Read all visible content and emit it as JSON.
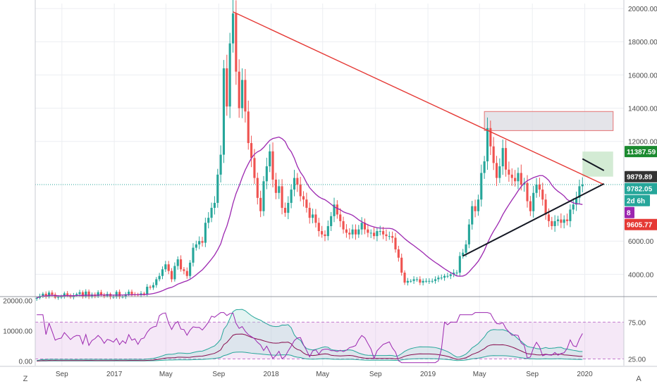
{
  "colors": {
    "bull": "#26a69a",
    "bear": "#ef5350",
    "ma": "#9c27b0",
    "trend_red": "#e53935",
    "trend_black": "#131722",
    "grid": "#eceef2",
    "axis_text": "#4a4a4a",
    "price_line": "#26a69a",
    "rsi": "#9c27b0",
    "bb_upper": "#26a69a",
    "bb_lower": "#26a69a",
    "bb_mid": "#880e4f",
    "osc_fill": "#e1bee7"
  },
  "bottom_bar": {
    "left_icon": "Z",
    "right_icon": "A"
  },
  "chart_data": [
    {
      "type": "candlestick",
      "title": "",
      "x": {
        "start": "2016-07",
        "end": "2020-04",
        "tick_labels": [
          "Sep",
          "2017",
          "May",
          "Sep",
          "2018",
          "May",
          "Sep",
          "2019",
          "May",
          "Sep",
          "2020"
        ]
      },
      "y": {
        "min": 2700,
        "max": 20300,
        "tick_labels": [
          "20000.00",
          "18000.00",
          "16000.00",
          "14000.00",
          "12000.00",
          "6000.00",
          "4000.00"
        ]
      },
      "weekly_close": [
        2580,
        2700,
        2830,
        2650,
        2900,
        2780,
        2590,
        2630,
        2650,
        2850,
        2750,
        2620,
        2740,
        2810,
        2920,
        2660,
        2960,
        2640,
        2780,
        2690,
        2920,
        2780,
        2690,
        2820,
        2630,
        2650,
        2940,
        2640,
        2650,
        2800,
        2950,
        2800,
        2780,
        2750,
        2850,
        2800,
        3250,
        3200,
        3350,
        3700,
        3900,
        4300,
        4600,
        4200,
        3700,
        4500,
        4900,
        4300,
        4200,
        3900,
        4700,
        5600,
        5800,
        6000,
        5900,
        7100,
        7400,
        8000,
        8300,
        10000,
        11200,
        16400,
        14100,
        17900,
        19700,
        16200,
        14000,
        15700,
        13800,
        11900,
        11000,
        9800,
        8600,
        7800,
        9600,
        10500,
        11400,
        9700,
        8900,
        9300,
        8000,
        7700,
        8300,
        9100,
        9800,
        9400,
        8700,
        8500,
        8000,
        7400,
        7600,
        7100,
        6600,
        6400,
        6300,
        6900,
        7500,
        8200,
        7600,
        7200,
        6700,
        6500,
        6400,
        6700,
        6400,
        6700,
        7100,
        6700,
        6500,
        6500,
        6300,
        6600,
        6600,
        6400,
        6300,
        6300,
        6200,
        5500,
        5000,
        4100,
        3500,
        3600,
        3600,
        3700,
        3700,
        3500,
        3600,
        3600,
        3600,
        3600,
        3700,
        3800,
        3800,
        3900,
        3900,
        4000,
        4100,
        4100,
        5100,
        5300,
        5800,
        7000,
        8100,
        7800,
        8500,
        10100,
        10800,
        12800,
        11700,
        10700,
        9800,
        10500,
        11600,
        10300,
        10000,
        9800,
        9600,
        10100,
        9400,
        9500,
        8400,
        7800,
        8900,
        9400,
        9100,
        8500,
        7600,
        7200,
        6900,
        7200,
        7300,
        7100,
        7300,
        7200,
        7900,
        8200,
        8600,
        9300,
        9400
      ],
      "reference_levels": [
        {
          "label": "11387.59",
          "value": 11387.59,
          "color": "#1b8a2f"
        },
        {
          "label": "9879.89",
          "value": 9879.89,
          "color": "#333333"
        },
        {
          "label": "9782.05",
          "value": 9782.05,
          "color": "#26a69a"
        },
        {
          "label": "2d 6h",
          "value": 9370,
          "color": "#26a69a"
        },
        {
          "label": "8",
          "value": 8700,
          "color": "#9c27b0"
        },
        {
          "label": "9605.77",
          "value": 9605.77,
          "color": "#e53935"
        }
      ],
      "trendlines": [
        {
          "color": "red",
          "from": {
            "week": 64,
            "price": 19800
          },
          "to": {
            "week": 185,
            "price": 9400
          }
        },
        {
          "color": "black",
          "from": {
            "week": 139,
            "price": 5100
          },
          "to": {
            "week": 185,
            "price": 9450
          }
        },
        {
          "color": "black",
          "from": {
            "week": 178,
            "price": 10950
          },
          "to": {
            "week": 185,
            "price": 10250
          }
        }
      ],
      "zones": [
        {
          "type": "resistance",
          "from_week": 146,
          "to_week": 188,
          "low": 12650,
          "high": 13800
        },
        {
          "type": "target",
          "from_week": 178,
          "to_week": 188,
          "low": 9879.89,
          "high": 11387.59
        }
      ]
    },
    {
      "type": "line",
      "title": "",
      "y": {
        "min": -1500,
        "max": 20600,
        "tick_labels": [
          "20000.00",
          "10000.00",
          "0.00"
        ],
        "right_tick_labels": [
          "75.00",
          "25.00"
        ]
      },
      "rsi_band": [
        25,
        75
      ],
      "series_note": "oscillator panel: RSI (purple), Bollinger width bands (teal), moving average (maroon)"
    }
  ]
}
